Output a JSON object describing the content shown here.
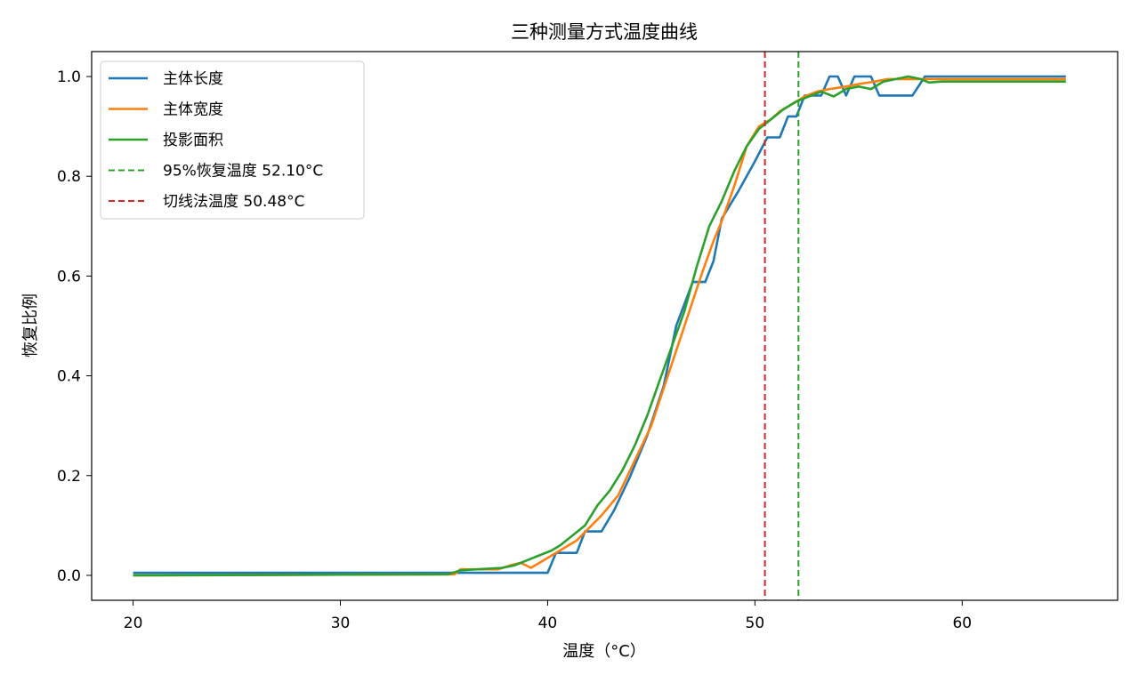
{
  "chart_data": {
    "type": "line",
    "title": "三种测量方式温度曲线",
    "xlabel": "温度（°C）",
    "ylabel": "恢复比例",
    "xlim": [
      18,
      67.5
    ],
    "ylim": [
      -0.05,
      1.05
    ],
    "xticks": [
      20,
      30,
      40,
      50,
      60
    ],
    "yticks": [
      0.0,
      0.2,
      0.4,
      0.6,
      0.8,
      1.0
    ],
    "legend_position": "top-left",
    "grid": false,
    "series": [
      {
        "name": "主体长度",
        "color": "#1f77b4",
        "x": [
          20,
          35,
          40,
          40.4,
          41.4,
          41.8,
          42.6,
          43.2,
          44,
          44.8,
          45.6,
          46.2,
          47,
          47.2,
          47.6,
          48,
          48.4,
          49.2,
          50,
          50.6,
          51,
          51.2,
          51.6,
          52,
          52.4,
          52.8,
          53.2,
          53.6,
          54,
          54.4,
          54.8,
          55.2,
          55.6,
          56,
          56.4,
          56.8,
          57.2,
          57.6,
          58.2,
          59,
          60,
          65
        ],
        "y": [
          0.005,
          0.005,
          0.005,
          0.045,
          0.045,
          0.088,
          0.088,
          0.13,
          0.2,
          0.28,
          0.38,
          0.5,
          0.588,
          0.588,
          0.588,
          0.63,
          0.715,
          0.77,
          0.83,
          0.878,
          0.878,
          0.878,
          0.92,
          0.92,
          0.962,
          0.962,
          0.962,
          1.0,
          1.0,
          0.962,
          1.0,
          1.0,
          1.0,
          0.962,
          0.962,
          0.962,
          0.962,
          0.962,
          1.0,
          1.0,
          1.0,
          1.0
        ]
      },
      {
        "name": "主体宽度",
        "color": "#ff7f0e",
        "x": [
          20,
          35.5,
          35.8,
          37.6,
          38.2,
          38.7,
          39.2,
          39.8,
          40.2,
          40.8,
          41.4,
          42,
          42.6,
          43.4,
          44.2,
          45,
          45.8,
          46.6,
          47.4,
          48,
          48.4,
          49,
          49.6,
          50.2,
          50.8,
          51.2,
          51.8,
          52.4,
          53,
          53.6,
          54.4,
          55,
          55.8,
          56.4,
          57.2,
          58.2,
          60,
          62,
          65
        ],
        "y": [
          0.0,
          0.002,
          0.012,
          0.012,
          0.02,
          0.025,
          0.015,
          0.03,
          0.04,
          0.055,
          0.07,
          0.095,
          0.12,
          0.16,
          0.23,
          0.3,
          0.4,
          0.5,
          0.6,
          0.67,
          0.71,
          0.78,
          0.86,
          0.9,
          0.915,
          0.93,
          0.945,
          0.96,
          0.97,
          0.975,
          0.98,
          0.985,
          0.99,
          0.995,
          0.995,
          0.995,
          0.995,
          0.995,
          0.995
        ]
      },
      {
        "name": "投影面积",
        "color": "#2ca02c",
        "x": [
          20,
          35.2,
          35.8,
          37.8,
          38.4,
          39,
          39.6,
          40.2,
          40.6,
          41.2,
          41.8,
          42.4,
          43,
          43.6,
          44.2,
          44.8,
          45.4,
          46,
          46.6,
          47.2,
          47.8,
          48.4,
          49,
          49.6,
          50.2,
          50.8,
          51.4,
          52,
          52.6,
          53.2,
          53.8,
          54.4,
          55,
          55.6,
          56.2,
          56.8,
          57.4,
          58,
          58.4,
          59,
          60,
          61,
          62,
          63,
          65
        ],
        "y": [
          0.0,
          0.002,
          0.01,
          0.015,
          0.02,
          0.03,
          0.04,
          0.05,
          0.06,
          0.08,
          0.1,
          0.14,
          0.17,
          0.21,
          0.26,
          0.32,
          0.39,
          0.46,
          0.53,
          0.62,
          0.7,
          0.75,
          0.81,
          0.86,
          0.895,
          0.915,
          0.935,
          0.95,
          0.96,
          0.97,
          0.96,
          0.975,
          0.98,
          0.975,
          0.99,
          0.995,
          1.0,
          0.995,
          0.988,
          0.99,
          0.99,
          0.99,
          0.99,
          0.99,
          0.99
        ]
      }
    ],
    "vlines": [
      {
        "name": "95%恢复温度 52.10°C",
        "x": 52.1,
        "color": "#2ca02c",
        "style": "dashed"
      },
      {
        "name": "切线法温度 50.48°C",
        "x": 50.48,
        "color": "#d62728",
        "style": "dashed"
      }
    ]
  }
}
